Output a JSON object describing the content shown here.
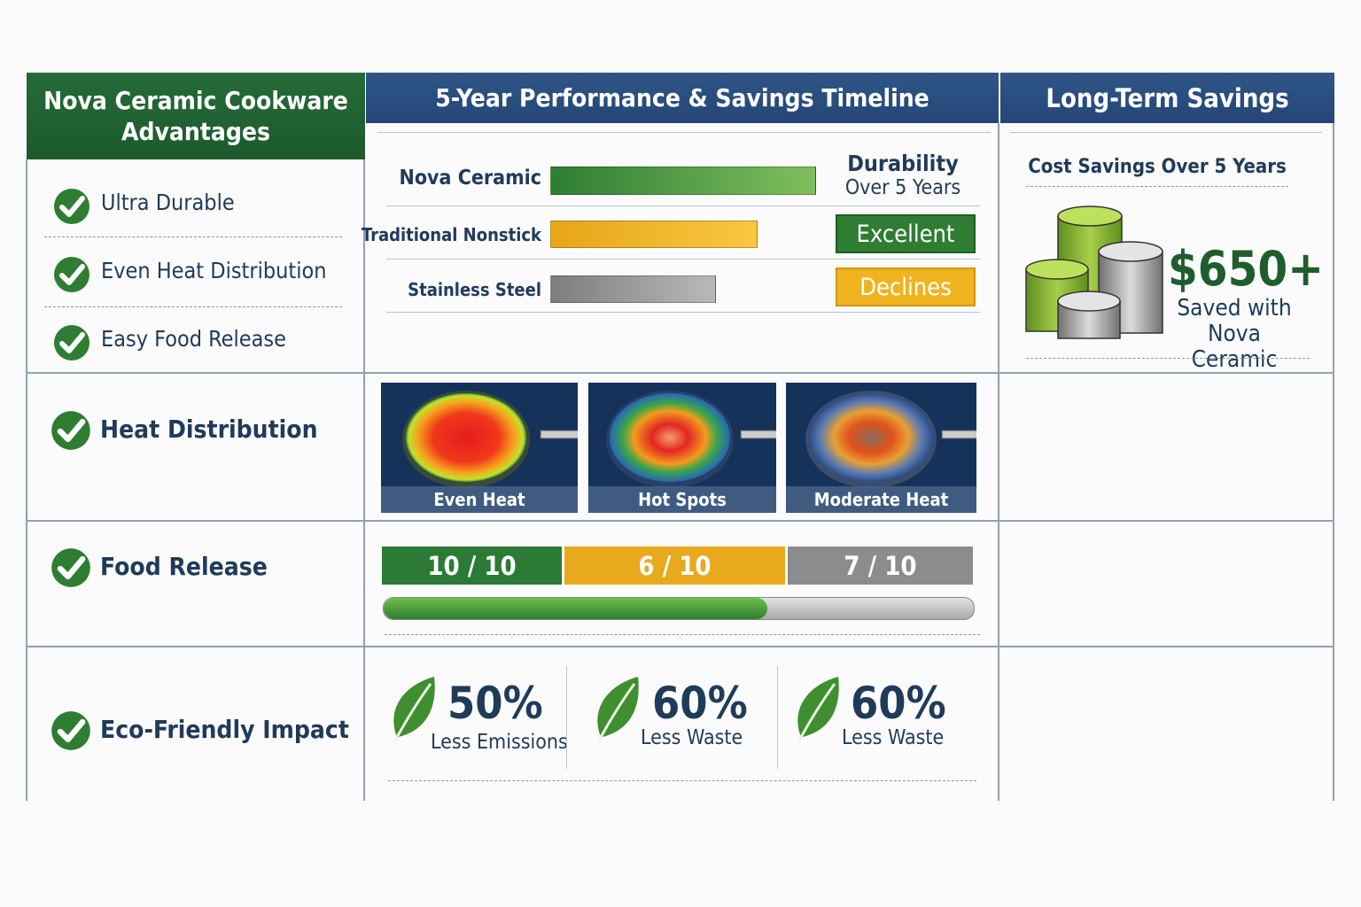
{
  "headers": {
    "col1_line1": "Nova Ceramic Cookware",
    "col1_line2": "Advantages",
    "col2": "5-Year Performance & Savings Timeline",
    "col3": "Long-Term Savings"
  },
  "advantages": [
    "Ultra Durable",
    "Even Heat Distribution",
    "Easy Food Release"
  ],
  "rows": {
    "heat": "Heat Distribution",
    "food": "Food Release",
    "eco": "Eco-Friendly Impact"
  },
  "durability": {
    "header_line1": "Durability",
    "header_line2": "Over 5 Years",
    "badge_excellent": "Excellent",
    "badge_declines": "Declines"
  },
  "savings": {
    "title": "Cost Savings Over 5 Years",
    "amount": "$650+",
    "line1": "Saved with",
    "line2": "Nova Ceramic"
  },
  "heat_maps": [
    {
      "caption": "Even Heat"
    },
    {
      "caption": "Hot Spots"
    },
    {
      "caption": "Moderate Heat"
    }
  ],
  "food_release": {
    "progress_fraction": 0.65
  },
  "eco": [
    {
      "value": "50%",
      "label": "Less Emissions"
    },
    {
      "value": "60%",
      "label": "Less Waste"
    },
    {
      "value": "60%",
      "label": "Less Waste"
    }
  ],
  "colors": {
    "green": "#2f7d32",
    "orange": "#e8a91c",
    "gray": "#8a8a8a",
    "header_green": "#1f5f30",
    "header_blue": "#2c4f80"
  },
  "chart_data": [
    {
      "type": "bar",
      "title": "Durability Over 5 Years",
      "categories": [
        "Nova Ceramic",
        "Traditional Nonstick",
        "Stainless Steel"
      ],
      "values": [
        100,
        78,
        62
      ],
      "xlabel": "",
      "ylabel": "",
      "ylim": [
        0,
        100
      ]
    },
    {
      "type": "bar",
      "title": "Food Release",
      "categories": [
        "Nova Ceramic",
        "Traditional Nonstick",
        "Stainless Steel"
      ],
      "values": [
        10,
        6,
        7
      ],
      "labels": [
        "10 / 10",
        "6 / 10",
        "7 / 10"
      ],
      "ylim": [
        0,
        10
      ]
    }
  ]
}
